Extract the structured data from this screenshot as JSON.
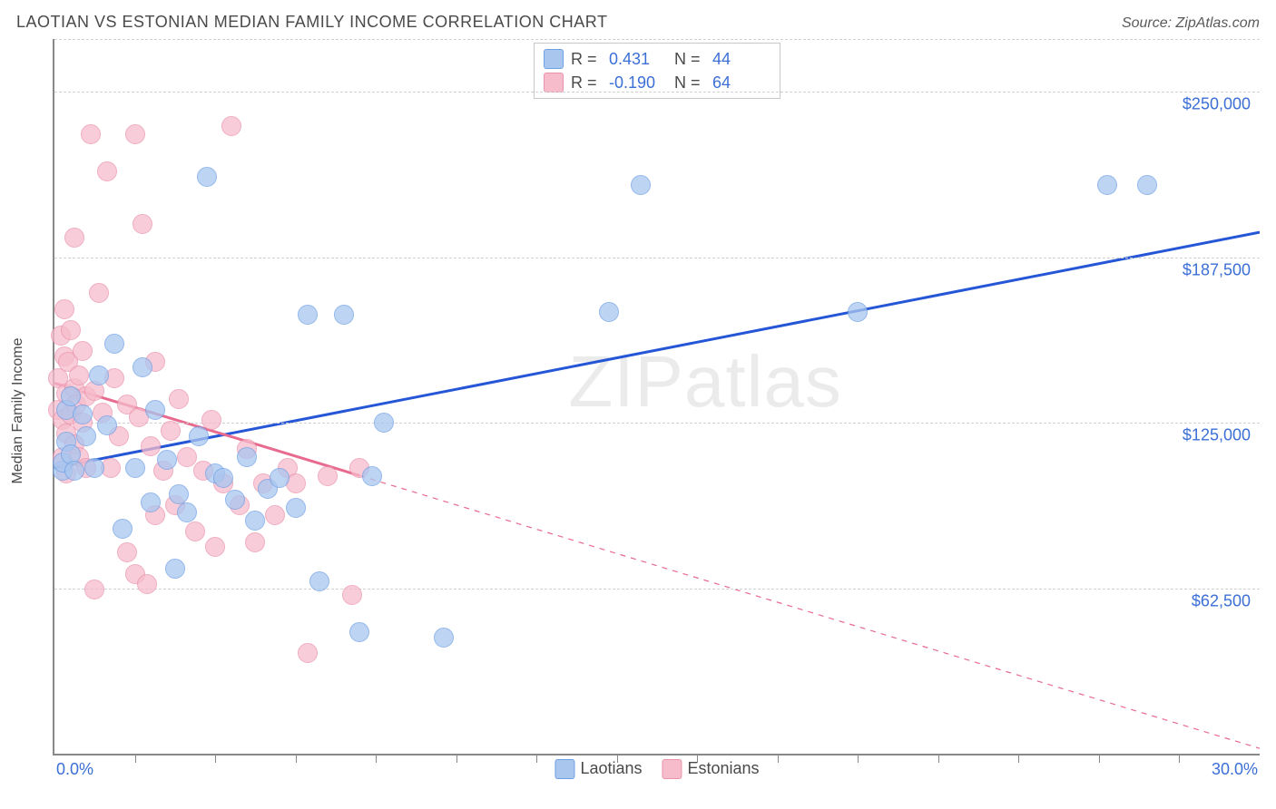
{
  "header": {
    "title": "LAOTIAN VS ESTONIAN MEDIAN FAMILY INCOME CORRELATION CHART",
    "source": "Source: ZipAtlas.com"
  },
  "axes": {
    "ylabel": "Median Family Income",
    "xlim": [
      0,
      30
    ],
    "ylim": [
      0,
      270000
    ],
    "y_ticks": [
      62500,
      125000,
      187500,
      250000
    ],
    "y_tick_labels": [
      "$62,500",
      "$125,000",
      "$187,500",
      "$250,000"
    ],
    "x_tick_positions": [
      2,
      4,
      6,
      8,
      10,
      12,
      14,
      16,
      18,
      20,
      22,
      24,
      26,
      28
    ],
    "x_min_label": "0.0%",
    "x_max_label": "30.0%",
    "y_tick_color": "#3b6fd6",
    "grid_color": "#d0d0d0",
    "axis_color": "#888888"
  },
  "watermark": {
    "text_a": "ZIP",
    "text_b": "atlas"
  },
  "legend_top": {
    "rows": [
      {
        "swatch_fill": "#a9c6ef",
        "swatch_stroke": "#6fa0e5",
        "label_r": "R =",
        "val_r": "0.431",
        "label_n": "N =",
        "val_n": "44"
      },
      {
        "swatch_fill": "#f6bccc",
        "swatch_stroke": "#ea93ad",
        "label_r": "R =",
        "val_r": "-0.190",
        "label_n": "N =",
        "val_n": "64"
      }
    ]
  },
  "legend_bottom": {
    "items": [
      {
        "swatch_fill": "#a9c6ef",
        "swatch_stroke": "#6fa0e5",
        "label": "Laotians"
      },
      {
        "swatch_fill": "#f6bccc",
        "swatch_stroke": "#ea93ad",
        "label": "Estonians"
      }
    ]
  },
  "series": {
    "laotians": {
      "marker_fill": "#a9c6ef",
      "marker_stroke": "#6fa0e5",
      "marker_opacity": 0.75,
      "marker_radius": 11,
      "trend_color": "#2556d6",
      "trend_width": 3,
      "trend_dash_after_x": null,
      "trend": {
        "x0": 0,
        "y0": 108000,
        "x1": 30,
        "y1": 197000
      },
      "points": [
        [
          0.2,
          107000
        ],
        [
          0.2,
          110000
        ],
        [
          0.3,
          130000
        ],
        [
          0.3,
          118000
        ],
        [
          0.4,
          113000
        ],
        [
          0.4,
          135000
        ],
        [
          0.5,
          107000
        ],
        [
          0.7,
          128000
        ],
        [
          0.8,
          120000
        ],
        [
          1.0,
          108000
        ],
        [
          1.1,
          143000
        ],
        [
          1.3,
          124000
        ],
        [
          1.5,
          155000
        ],
        [
          1.7,
          85000
        ],
        [
          2.0,
          108000
        ],
        [
          2.2,
          146000
        ],
        [
          2.4,
          95000
        ],
        [
          2.5,
          130000
        ],
        [
          2.8,
          111000
        ],
        [
          3.0,
          70000
        ],
        [
          3.1,
          98000
        ],
        [
          3.3,
          91000
        ],
        [
          3.6,
          120000
        ],
        [
          3.8,
          218000
        ],
        [
          4.0,
          106000
        ],
        [
          4.2,
          104000
        ],
        [
          4.5,
          96000
        ],
        [
          4.8,
          112000
        ],
        [
          5.0,
          88000
        ],
        [
          5.3,
          100000
        ],
        [
          5.6,
          104000
        ],
        [
          6.0,
          93000
        ],
        [
          6.3,
          166000
        ],
        [
          6.6,
          65000
        ],
        [
          7.2,
          166000
        ],
        [
          7.6,
          46000
        ],
        [
          7.9,
          105000
        ],
        [
          8.2,
          125000
        ],
        [
          9.7,
          44000
        ],
        [
          13.8,
          167000
        ],
        [
          14.6,
          215000
        ],
        [
          20.0,
          167000
        ],
        [
          26.2,
          215000
        ],
        [
          27.2,
          215000
        ]
      ]
    },
    "estonians": {
      "marker_fill": "#f6bccc",
      "marker_stroke": "#ea93ad",
      "marker_opacity": 0.75,
      "marker_radius": 11,
      "trend_color": "#e86a8f",
      "trend_width": 3,
      "trend_dash_after_x": 7.6,
      "trend": {
        "x0": 0,
        "y0": 140000,
        "x1": 30,
        "y1": 2000
      },
      "points": [
        [
          0.1,
          130000
        ],
        [
          0.1,
          142000
        ],
        [
          0.15,
          158000
        ],
        [
          0.2,
          112000
        ],
        [
          0.2,
          126000
        ],
        [
          0.25,
          150000
        ],
        [
          0.25,
          168000
        ],
        [
          0.3,
          106000
        ],
        [
          0.3,
          121000
        ],
        [
          0.3,
          136000
        ],
        [
          0.35,
          148000
        ],
        [
          0.4,
          128000
        ],
        [
          0.4,
          160000
        ],
        [
          0.5,
          117000
        ],
        [
          0.5,
          138000
        ],
        [
          0.5,
          195000
        ],
        [
          0.55,
          132000
        ],
        [
          0.6,
          112000
        ],
        [
          0.6,
          143000
        ],
        [
          0.7,
          125000
        ],
        [
          0.7,
          152000
        ],
        [
          0.8,
          135000
        ],
        [
          0.8,
          108000
        ],
        [
          0.9,
          234000
        ],
        [
          1.0,
          137000
        ],
        [
          1.0,
          62000
        ],
        [
          1.1,
          174000
        ],
        [
          1.2,
          129000
        ],
        [
          1.3,
          220000
        ],
        [
          1.4,
          108000
        ],
        [
          1.5,
          142000
        ],
        [
          1.6,
          120000
        ],
        [
          1.8,
          132000
        ],
        [
          1.8,
          76000
        ],
        [
          2.0,
          234000
        ],
        [
          2.0,
          68000
        ],
        [
          2.1,
          127000
        ],
        [
          2.2,
          200000
        ],
        [
          2.4,
          116000
        ],
        [
          2.5,
          90000
        ],
        [
          2.5,
          148000
        ],
        [
          2.7,
          107000
        ],
        [
          2.9,
          122000
        ],
        [
          3.0,
          94000
        ],
        [
          3.1,
          134000
        ],
        [
          3.3,
          112000
        ],
        [
          3.5,
          84000
        ],
        [
          3.7,
          107000
        ],
        [
          3.9,
          126000
        ],
        [
          4.0,
          78000
        ],
        [
          4.2,
          102000
        ],
        [
          4.4,
          237000
        ],
        [
          4.6,
          94000
        ],
        [
          4.8,
          115000
        ],
        [
          5.0,
          80000
        ],
        [
          5.2,
          102000
        ],
        [
          5.5,
          90000
        ],
        [
          5.8,
          108000
        ],
        [
          6.0,
          102000
        ],
        [
          6.3,
          38000
        ],
        [
          6.8,
          105000
        ],
        [
          7.4,
          60000
        ],
        [
          7.6,
          108000
        ],
        [
          2.3,
          64000
        ]
      ]
    }
  }
}
